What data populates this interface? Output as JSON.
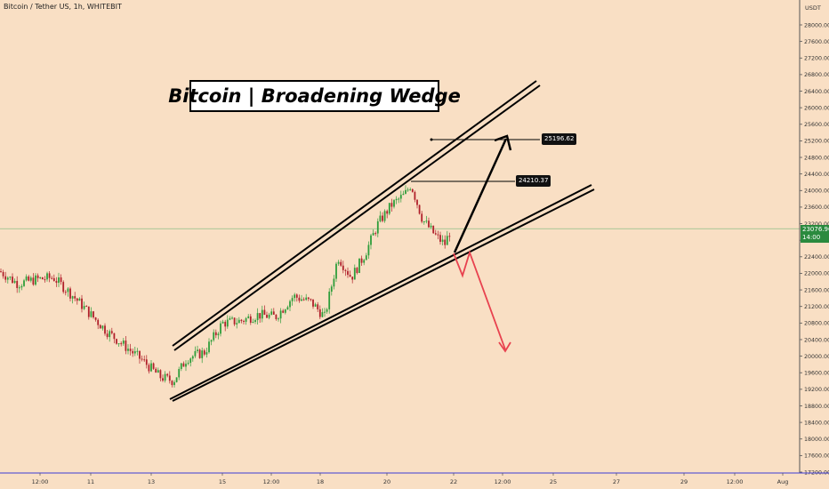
{
  "header": {
    "symbol": "Bitcoin / Tether US, 1h, WHITEBIT",
    "currency": "USDT"
  },
  "annotation": {
    "title": "Bitcoin | Broadening Wedge",
    "target_up": "25196.62",
    "high_label": "24210.37"
  },
  "last_price": {
    "value": "23076.96",
    "countdown": "14:00"
  },
  "colors": {
    "background": "#f9dfc4",
    "up_candle": "#2e9d3a",
    "down_candle": "#b0202a",
    "bearish_arrow": "#e8424f",
    "lines": "#000000"
  },
  "chart_data": {
    "type": "candlestick",
    "title": "Bitcoin | Broadening Wedge",
    "symbol": "Bitcoin / Tether US",
    "interval": "1h",
    "exchange": "WHITEBIT",
    "y_axis_unit": "USDT",
    "ylim": [
      17200,
      28400
    ],
    "y_ticks": [
      "28000.00",
      "27600.00",
      "27200.00",
      "26800.00",
      "26400.00",
      "26000.00",
      "25600.00",
      "25200.00",
      "24800.00",
      "24400.00",
      "24000.00",
      "23600.00",
      "23200.00",
      "22800.00",
      "22400.00",
      "22000.00",
      "21600.00",
      "21200.00",
      "20800.00",
      "20400.00",
      "20000.00",
      "19600.00",
      "19200.00",
      "18800.00",
      "18400.00",
      "18000.00",
      "17600.00",
      "17200.00"
    ],
    "x_ticks": [
      "12:00",
      "11",
      "12:00",
      "13",
      "15",
      "12:00",
      "18",
      "20",
      "22",
      "12:00",
      "25",
      "27",
      "29",
      "12:00",
      "Aug"
    ],
    "last_price": 23076.96,
    "marked_high": 24210.37,
    "projected_target": 25196.62,
    "approx_close_path": [
      [
        0,
        22050
      ],
      [
        20,
        21750
      ],
      [
        40,
        21850
      ],
      [
        60,
        21900
      ],
      [
        80,
        21500
      ],
      [
        100,
        21050
      ],
      [
        120,
        20600
      ],
      [
        140,
        20250
      ],
      [
        160,
        19900
      ],
      [
        180,
        19500
      ],
      [
        195,
        19400
      ],
      [
        210,
        19950
      ],
      [
        230,
        20100
      ],
      [
        250,
        20800
      ],
      [
        270,
        20850
      ],
      [
        290,
        21000
      ],
      [
        310,
        20950
      ],
      [
        330,
        21450
      ],
      [
        350,
        21300
      ],
      [
        365,
        20950
      ],
      [
        380,
        22400
      ],
      [
        395,
        21900
      ],
      [
        410,
        22450
      ],
      [
        425,
        23200
      ],
      [
        440,
        23650
      ],
      [
        455,
        23900
      ],
      [
        462,
        24150
      ],
      [
        475,
        23300
      ],
      [
        490,
        22900
      ],
      [
        500,
        22700
      ],
      [
        507,
        23077
      ]
    ],
    "annotations": [
      {
        "type": "trendline",
        "role": "upper wedge boundary"
      },
      {
        "type": "trendline",
        "role": "lower wedge boundary"
      },
      {
        "type": "arrow",
        "direction": "up",
        "target": 25196.62
      },
      {
        "type": "arrow",
        "direction": "down"
      }
    ]
  }
}
